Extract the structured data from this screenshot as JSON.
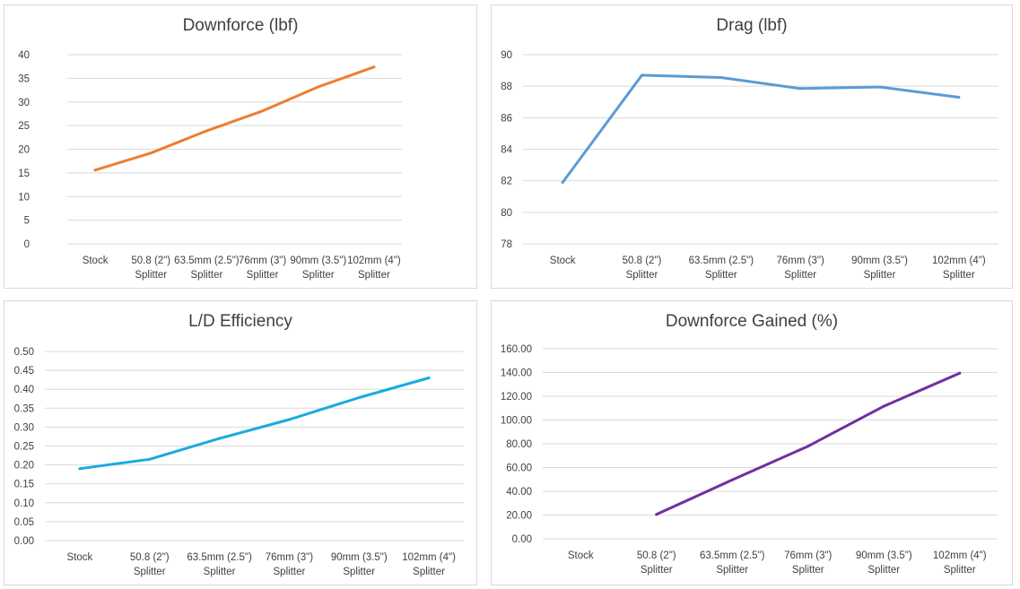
{
  "chart_data": [
    {
      "type": "line",
      "title": "Downforce (lbf)",
      "categories": [
        "Stock",
        "50.8 (2\")|Splitter",
        "63.5mm (2.5\")|Splitter",
        "76mm (3\")|Splitter",
        "90mm (3.5\")|Splitter",
        "102mm (4\")|Splitter"
      ],
      "values": [
        15.6,
        19.2,
        23.9,
        28.1,
        33.2,
        37.4
      ],
      "yticks": [
        "0",
        "5",
        "10",
        "15",
        "20",
        "25",
        "30",
        "35",
        "40"
      ],
      "ylim": [
        0,
        40
      ],
      "color": "#ED7D31",
      "grid": true,
      "legend": "none"
    },
    {
      "type": "line",
      "title": "Drag (lbf)",
      "categories": [
        "Stock",
        "50.8 (2\")|Splitter",
        "63.5mm (2.5\")|Splitter",
        "76mm (3\")|Splitter",
        "90mm (3.5\")|Splitter",
        "102mm (4\")|Splitter"
      ],
      "values": [
        81.9,
        88.7,
        88.55,
        87.85,
        87.95,
        87.3
      ],
      "yticks": [
        "78",
        "80",
        "82",
        "84",
        "86",
        "88",
        "90"
      ],
      "ylim": [
        78,
        90
      ],
      "color": "#5B9BD5",
      "grid": true,
      "legend": "none"
    },
    {
      "type": "line",
      "title": "L/D Efficiency",
      "categories": [
        "Stock",
        "50.8 (2\")|Splitter",
        "63.5mm (2.5\")|Splitter",
        "76mm (3\")|Splitter",
        "90mm (3.5\")|Splitter",
        "102mm (4\")|Splitter"
      ],
      "values": [
        0.19,
        0.215,
        0.27,
        0.32,
        0.378,
        0.43
      ],
      "yticks": [
        "0.00",
        "0.05",
        "0.10",
        "0.15",
        "0.20",
        "0.25",
        "0.30",
        "0.35",
        "0.40",
        "0.45",
        "0.50"
      ],
      "ylim": [
        0,
        0.5
      ],
      "color": "#1BAAE1",
      "grid": true,
      "legend": "none"
    },
    {
      "type": "line",
      "title": "Downforce Gained (%)",
      "categories": [
        "Stock",
        "50.8 (2\")|Splitter",
        "63.5mm (2.5\")|Splitter",
        "76mm (3\")|Splitter",
        "90mm (3.5\")|Splitter",
        "102mm (4\")|Splitter"
      ],
      "values": [
        null,
        20.5,
        49.6,
        78.0,
        111.6,
        139.5
      ],
      "yticks": [
        "0.00",
        "20.00",
        "40.00",
        "60.00",
        "80.00",
        "100.00",
        "120.00",
        "140.00",
        "160.00"
      ],
      "ylim": [
        0,
        160
      ],
      "color": "#7030A0",
      "grid": true,
      "legend": "none"
    }
  ]
}
